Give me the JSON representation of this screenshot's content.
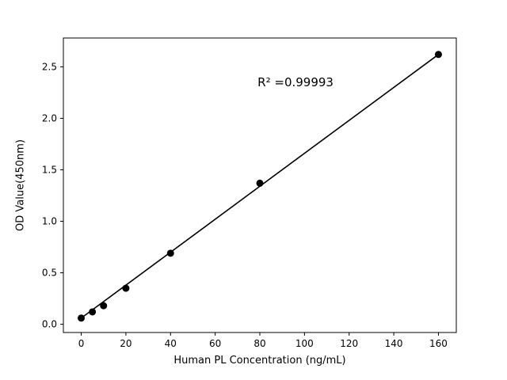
{
  "chart_data": {
    "type": "scatter",
    "title": "",
    "xlabel": "Human PL Concentration (ng/mL)",
    "ylabel": "OD Value(450nm)",
    "x": [
      0,
      5,
      10,
      20,
      40,
      80,
      160
    ],
    "y": [
      0.06,
      0.12,
      0.18,
      0.35,
      0.69,
      1.37,
      2.62
    ],
    "trendline": true,
    "annotation": {
      "text": "R² =0.99993",
      "x": 96,
      "y": 2.35
    },
    "xlim": [
      -8,
      168
    ],
    "ylim": [
      -0.08,
      2.78
    ],
    "xticks": [
      "0",
      "20",
      "40",
      "60",
      "80",
      "100",
      "120",
      "140",
      "160"
    ],
    "xtick_values": [
      0,
      20,
      40,
      60,
      80,
      100,
      120,
      140,
      160
    ],
    "yticks": [
      "0.0",
      "0.5",
      "1.0",
      "1.5",
      "2.0",
      "2.5"
    ],
    "ytick_values": [
      0.0,
      0.5,
      1.0,
      1.5,
      2.0,
      2.5
    ],
    "grid": false,
    "legend_position": "none",
    "line_color": "#000000",
    "marker_color": "#000000",
    "frame_color": "#000000",
    "background_color": "#ffffff"
  }
}
